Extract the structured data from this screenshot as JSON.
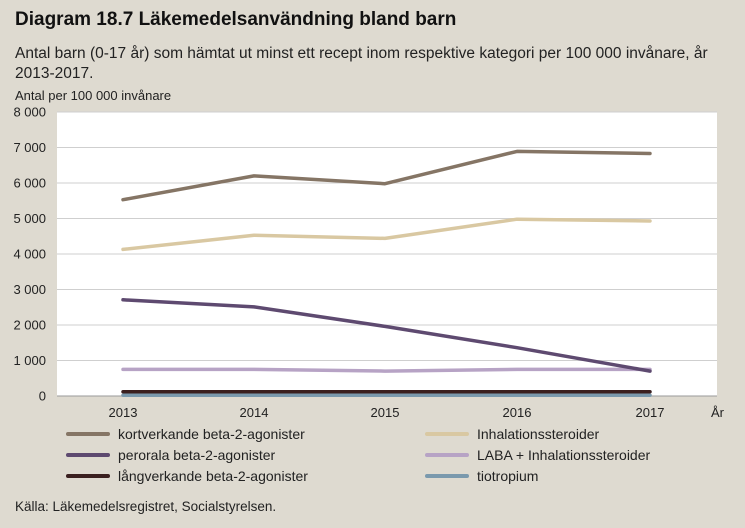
{
  "header": {
    "title": "Diagram 18.7 Läkemedelsanvändning bland barn",
    "subtitle": "Antal barn (0-17 år) som hämtat ut minst ett recept inom respektive kategori per 100 000 invånare, år 2013-2017."
  },
  "source": "Källa: Läkemedelsregistret, Socialstyrelsen.",
  "chart_data": {
    "type": "line",
    "ylabel": "Antal per 100 000 invånare",
    "xlabel": "År",
    "x": [
      "2013",
      "2014",
      "2015",
      "2016",
      "2017"
    ],
    "ylim": [
      0,
      8000
    ],
    "yticks": [
      0,
      1000,
      2000,
      3000,
      4000,
      5000,
      6000,
      7000,
      8000
    ],
    "ytick_labels": [
      "0",
      "1 000",
      "2 000",
      "3 000",
      "4 000",
      "5 000",
      "6 000",
      "7 000",
      "8 000"
    ],
    "grid": true,
    "legend_position": "bottom",
    "series": [
      {
        "name": "kortverkande beta-2-agonister",
        "color": "#857565",
        "values": [
          5530,
          6200,
          5980,
          6890,
          6830
        ]
      },
      {
        "name": "Inhalationssteroider",
        "color": "#d9c8a2",
        "values": [
          4130,
          4530,
          4440,
          4980,
          4930
        ]
      },
      {
        "name": "perorala beta-2-agonister",
        "color": "#5e4a70",
        "values": [
          2710,
          2510,
          1960,
          1360,
          700
        ]
      },
      {
        "name": "LABA + Inhalationssteroider",
        "color": "#b7a3c5",
        "values": [
          750,
          750,
          700,
          750,
          750
        ]
      },
      {
        "name": "långverkande beta-2-agonister",
        "color": "#3a1f1f",
        "values": [
          120,
          120,
          120,
          120,
          120
        ]
      },
      {
        "name": "tiotropium",
        "color": "#7a99ad",
        "values": [
          20,
          20,
          20,
          20,
          20
        ]
      }
    ]
  }
}
